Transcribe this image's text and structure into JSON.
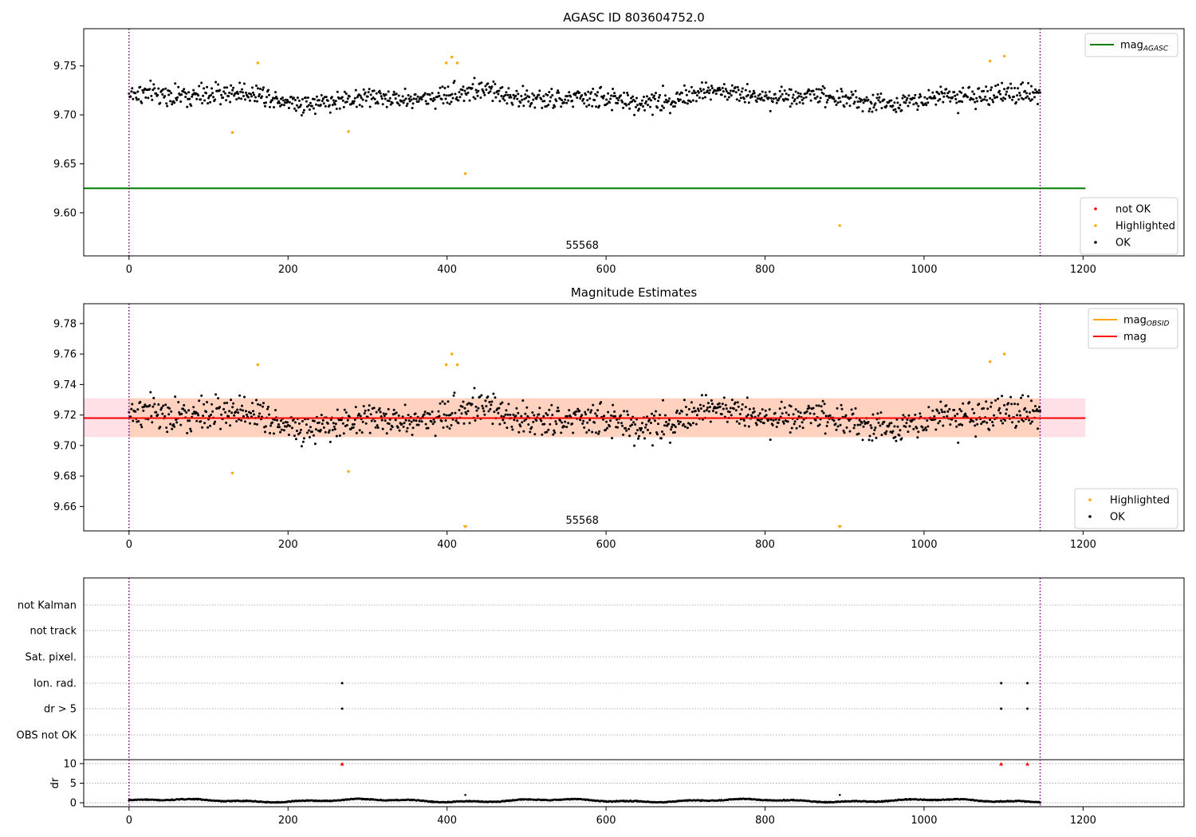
{
  "chart_data": [
    {
      "type": "scatter",
      "title": "AGASC ID 803604752.0",
      "annotation": "55568",
      "xlim": [
        -57,
        1327
      ],
      "ylim": [
        9.556,
        9.788
      ],
      "xticks": [
        0,
        200,
        400,
        600,
        800,
        1000,
        1200
      ],
      "xtick_labels": [
        "0",
        "200",
        "400",
        "600",
        "800",
        "1000",
        "1200"
      ],
      "yticks": [
        9.6,
        9.65,
        9.7,
        9.75
      ],
      "ytick_labels": [
        "9.60",
        "9.65",
        "9.70",
        "9.75"
      ],
      "vlines": [
        0,
        1146
      ],
      "hline": {
        "name": "mag_AGASC",
        "y": 9.625,
        "x_range": [
          -57,
          1203
        ],
        "color": "#008000"
      },
      "ok_points": {
        "label": "OK",
        "color": "#000000",
        "n": 1146,
        "x_range": [
          0,
          1146
        ],
        "center": 9.718,
        "spread": 0.012
      },
      "highlighted": {
        "label": "Highlighted",
        "color": "#ffa500",
        "x": [
          130,
          162,
          276,
          399,
          406,
          413,
          423,
          894,
          1083,
          1101
        ],
        "y": [
          9.682,
          9.753,
          9.683,
          9.753,
          9.759,
          9.753,
          9.64,
          9.587,
          9.755,
          9.76
        ]
      },
      "legend_top": {
        "entries": [
          {
            "label": "mag",
            "sub": "AGASC",
            "color": "#008000"
          }
        ],
        "loc": "upper right"
      },
      "legend_bottom": {
        "entries": [
          {
            "label": "not OK",
            "color": "#ff0000"
          },
          {
            "label": "Highlighted",
            "color": "#ffa500"
          },
          {
            "label": "OK",
            "color": "#000000"
          }
        ],
        "loc": "lower right"
      }
    },
    {
      "type": "scatter",
      "title": "Magnitude Estimates",
      "annotation": "55568",
      "xlim": [
        -57,
        1327
      ],
      "ylim": [
        9.644,
        9.793
      ],
      "xticks": [
        0,
        200,
        400,
        600,
        800,
        1000,
        1200
      ],
      "xtick_labels": [
        "0",
        "200",
        "400",
        "600",
        "800",
        "1000",
        "1200"
      ],
      "yticks": [
        9.66,
        9.68,
        9.7,
        9.72,
        9.74,
        9.76,
        9.78
      ],
      "ytick_labels": [
        "9.66",
        "9.68",
        "9.70",
        "9.72",
        "9.74",
        "9.76",
        "9.78"
      ],
      "vlines": [
        0,
        1146
      ],
      "mag_line": {
        "name": "mag",
        "y": 9.718,
        "x_range": [
          -57,
          1203
        ],
        "color": "#ff0000"
      },
      "mag_band": {
        "y_range": [
          9.7055,
          9.731
        ],
        "x_range": [
          0,
          1146
        ],
        "color": "#ffd2c0"
      },
      "mag_band_outer": {
        "y_range": [
          9.7055,
          9.731
        ],
        "x_range": [
          -57,
          1203
        ],
        "color": "#ffe0e6"
      },
      "ok_points": {
        "label": "OK",
        "color": "#000000",
        "n": 1146,
        "x_range": [
          0,
          1146
        ],
        "center": 9.718,
        "spread": 0.012
      },
      "highlighted": {
        "label": "Highlighted",
        "color": "#ffa500",
        "x": [
          130,
          162,
          276,
          399,
          406,
          413,
          1083,
          1101
        ],
        "y": [
          9.682,
          9.753,
          9.683,
          9.753,
          9.76,
          9.753,
          9.755,
          9.76
        ]
      },
      "offscale_markers": {
        "x": [
          423,
          894
        ],
        "color": "#ffa500"
      },
      "legend_top": {
        "entries": [
          {
            "label": "mag",
            "sub": "OBSID",
            "color": "#ffa500"
          },
          {
            "label": "mag",
            "sub": "",
            "color": "#ff0000"
          }
        ],
        "loc": "upper right"
      },
      "legend_bottom": {
        "entries": [
          {
            "label": "Highlighted",
            "color": "#ffa500"
          },
          {
            "label": "OK",
            "color": "#000000"
          }
        ],
        "loc": "lower right"
      }
    },
    {
      "type": "scatter",
      "title": "",
      "xlim": [
        -57,
        1327
      ],
      "xticks": [
        0,
        200,
        400,
        600,
        800,
        1000,
        1200
      ],
      "xtick_labels": [
        "0",
        "200",
        "400",
        "600",
        "800",
        "1000",
        "1200"
      ],
      "vlines": [
        0,
        1146
      ],
      "flag_rows": [
        "not Kalman",
        "not track",
        "Sat. pixel.",
        "Ion. rad.",
        "dr > 5",
        "OBS not OK"
      ],
      "flag_points": [
        {
          "row": "Ion. rad.",
          "x": [
            268,
            1097,
            1130
          ]
        },
        {
          "row": "dr > 5",
          "x": [
            268,
            1097,
            1130
          ]
        }
      ],
      "dr": {
        "ylabel": "dr",
        "ylim": [
          -1,
          11
        ],
        "yticks": [
          0,
          5,
          10
        ],
        "ytick_labels": [
          "0",
          "5",
          "10"
        ],
        "spikes": {
          "x": [
            268,
            1097,
            1130
          ],
          "y": [
            10,
            10,
            10
          ],
          "color": "#ff0000"
        },
        "outliers": {
          "x": [
            423,
            894
          ],
          "y": [
            2,
            2
          ]
        }
      }
    }
  ]
}
